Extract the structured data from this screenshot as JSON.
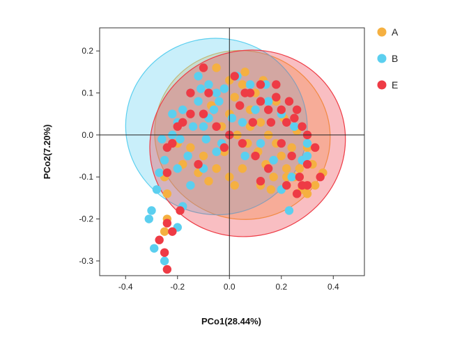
{
  "chart_data": {
    "type": "scatter",
    "title": "",
    "xlabel": "PCo1(28.44%)",
    "ylabel": "PCo2(7.20%)",
    "xlim": [
      -0.5,
      0.52
    ],
    "ylim": [
      -0.335,
      0.255
    ],
    "xticks": [
      -0.4,
      -0.2,
      0.0,
      0.2,
      0.4
    ],
    "xtick_labels": [
      "-0.4",
      "-0.2",
      "0.0",
      "0.2",
      "0.4"
    ],
    "yticks": [
      0.2,
      0.1,
      0.0,
      -0.1,
      -0.2,
      -0.3
    ],
    "ytick_labels": [
      "0.2",
      "0.1",
      "0.0",
      "-0.1",
      "-0.2",
      "-0.3"
    ],
    "zero_lines": true,
    "grid": false,
    "legend_position": "right",
    "series": [
      {
        "name": "A",
        "color": "#F5B041",
        "ellipse": {
          "cx": 0.05,
          "cy": 0.0,
          "rx": 0.34,
          "ry": 0.2,
          "angle_deg": -20
        },
        "points": [
          [
            -0.05,
            0.16
          ],
          [
            0.0,
            0.13
          ],
          [
            0.05,
            0.12
          ],
          [
            0.1,
            0.1
          ],
          [
            0.08,
            0.06
          ],
          [
            0.12,
            0.03
          ],
          [
            0.15,
            0.0
          ],
          [
            0.18,
            -0.02
          ],
          [
            0.2,
            -0.05
          ],
          [
            0.22,
            -0.08
          ],
          [
            0.25,
            -0.1
          ],
          [
            0.28,
            -0.13
          ],
          [
            0.3,
            -0.14
          ],
          [
            0.33,
            -0.12
          ],
          [
            0.36,
            -0.09
          ],
          [
            0.32,
            -0.07
          ],
          [
            0.28,
            -0.06
          ],
          [
            0.24,
            -0.03
          ],
          [
            0.1,
            -0.05
          ],
          [
            0.05,
            -0.08
          ],
          [
            0.0,
            -0.1
          ],
          [
            -0.05,
            -0.08
          ],
          [
            -0.1,
            -0.05
          ],
          [
            -0.15,
            -0.03
          ],
          [
            -0.2,
            -0.02
          ],
          [
            -0.18,
            -0.07
          ],
          [
            -0.25,
            -0.1
          ],
          [
            -0.24,
            -0.14
          ],
          [
            -0.24,
            -0.2
          ],
          [
            -0.25,
            -0.23
          ],
          [
            0.0,
            0.05
          ],
          [
            0.03,
            0.0
          ],
          [
            0.07,
            -0.02
          ],
          [
            0.11,
            -0.04
          ],
          [
            0.14,
            -0.07
          ],
          [
            0.17,
            -0.1
          ],
          [
            -0.03,
            0.02
          ],
          [
            -0.07,
            0.07
          ],
          [
            0.02,
            0.09
          ],
          [
            0.06,
            0.15
          ],
          [
            0.13,
            0.13
          ],
          [
            0.18,
            0.08
          ],
          [
            0.21,
            0.04
          ],
          [
            0.26,
            0.01
          ],
          [
            0.3,
            -0.03
          ],
          [
            0.22,
            -0.1
          ],
          [
            0.12,
            -0.12
          ],
          [
            0.02,
            -0.12
          ],
          [
            -0.08,
            -0.11
          ],
          [
            -0.12,
            -0.09
          ],
          [
            0.08,
            0.02
          ],
          [
            -0.02,
            -0.04
          ],
          [
            0.16,
            -0.13
          ],
          [
            0.27,
            -0.08
          ]
        ]
      },
      {
        "name": "B",
        "color": "#5BCFEF",
        "ellipse": {
          "cx": -0.05,
          "cy": 0.02,
          "rx": 0.35,
          "ry": 0.21,
          "angle_deg": -8
        },
        "points": [
          [
            -0.12,
            0.14
          ],
          [
            -0.08,
            0.12
          ],
          [
            -0.05,
            0.1
          ],
          [
            -0.15,
            0.1
          ],
          [
            -0.18,
            0.06
          ],
          [
            -0.2,
            0.03
          ],
          [
            -0.22,
            0.0
          ],
          [
            -0.24,
            -0.03
          ],
          [
            -0.25,
            -0.06
          ],
          [
            -0.27,
            -0.09
          ],
          [
            -0.28,
            -0.13
          ],
          [
            -0.3,
            -0.18
          ],
          [
            -0.31,
            -0.2
          ],
          [
            -0.29,
            -0.27
          ],
          [
            -0.25,
            -0.3
          ],
          [
            -0.2,
            -0.22
          ],
          [
            -0.18,
            -0.17
          ],
          [
            -0.15,
            -0.12
          ],
          [
            -0.1,
            -0.08
          ],
          [
            -0.05,
            -0.04
          ],
          [
            0.0,
            0.0
          ],
          [
            0.05,
            0.03
          ],
          [
            0.1,
            0.06
          ],
          [
            0.15,
            0.08
          ],
          [
            0.2,
            0.05
          ],
          [
            0.25,
            0.02
          ],
          [
            0.3,
            -0.02
          ],
          [
            0.28,
            -0.06
          ],
          [
            0.24,
            -0.1
          ],
          [
            0.2,
            -0.13
          ],
          [
            0.23,
            -0.18
          ],
          [
            0.3,
            -0.05
          ],
          [
            -0.1,
            0.02
          ],
          [
            -0.06,
            0.06
          ],
          [
            -0.02,
            0.11
          ],
          [
            0.03,
            0.14
          ],
          [
            -0.14,
            0.02
          ],
          [
            -0.19,
            -0.01
          ],
          [
            -0.16,
            -0.05
          ],
          [
            -0.12,
            0.08
          ],
          [
            -0.08,
            0.04
          ],
          [
            -0.03,
            -0.02
          ],
          [
            0.08,
            0.12
          ],
          [
            0.12,
            -0.02
          ],
          [
            0.17,
            -0.06
          ],
          [
            -0.22,
            0.05
          ],
          [
            -0.26,
            -0.01
          ],
          [
            -0.09,
            -0.01
          ],
          [
            -0.04,
            0.08
          ],
          [
            0.01,
            0.04
          ],
          [
            0.06,
            -0.05
          ],
          [
            0.14,
            0.12
          ],
          [
            -0.11,
            0.11
          ],
          [
            -0.2,
            -0.08
          ]
        ]
      },
      {
        "name": "E",
        "color": "#EE3B45",
        "ellipse": {
          "cx": 0.07,
          "cy": -0.02,
          "rx": 0.38,
          "ry": 0.22,
          "angle_deg": 22
        },
        "points": [
          [
            -0.1,
            0.16
          ],
          [
            0.02,
            0.14
          ],
          [
            0.08,
            0.1
          ],
          [
            0.12,
            0.08
          ],
          [
            0.15,
            0.06
          ],
          [
            0.18,
            0.09
          ],
          [
            0.2,
            0.06
          ],
          [
            0.22,
            0.03
          ],
          [
            0.25,
            0.04
          ],
          [
            0.28,
            0.02
          ],
          [
            0.3,
            0.0
          ],
          [
            0.33,
            -0.03
          ],
          [
            0.3,
            -0.07
          ],
          [
            0.27,
            -0.1
          ],
          [
            0.3,
            -0.12
          ],
          [
            0.26,
            -0.14
          ],
          [
            0.22,
            -0.12
          ],
          [
            0.15,
            -0.08
          ],
          [
            0.1,
            -0.05
          ],
          [
            0.05,
            -0.02
          ],
          [
            0.0,
            0.0
          ],
          [
            -0.05,
            0.02
          ],
          [
            -0.1,
            0.05
          ],
          [
            -0.15,
            0.05
          ],
          [
            -0.18,
            0.03
          ],
          [
            -0.22,
            -0.02
          ],
          [
            -0.24,
            -0.03
          ],
          [
            -0.24,
            -0.09
          ],
          [
            -0.19,
            -0.18
          ],
          [
            -0.24,
            -0.21
          ],
          [
            -0.27,
            -0.25
          ],
          [
            -0.25,
            -0.28
          ],
          [
            -0.24,
            -0.32
          ],
          [
            -0.22,
            -0.23
          ],
          [
            0.18,
            0.12
          ],
          [
            0.23,
            0.08
          ],
          [
            0.26,
            0.06
          ],
          [
            0.12,
            0.12
          ],
          [
            -0.08,
            0.1
          ],
          [
            0.04,
            0.07
          ],
          [
            0.09,
            0.03
          ],
          [
            0.2,
            -0.02
          ],
          [
            0.12,
            -0.11
          ],
          [
            -0.02,
            -0.03
          ],
          [
            -0.12,
            -0.07
          ],
          [
            0.35,
            -0.1
          ],
          [
            0.24,
            -0.05
          ],
          [
            0.16,
            0.03
          ],
          [
            0.06,
            0.1
          ],
          [
            -0.15,
            0.1
          ],
          [
            0.28,
            -0.12
          ],
          [
            -0.2,
            0.02
          ]
        ]
      }
    ]
  }
}
